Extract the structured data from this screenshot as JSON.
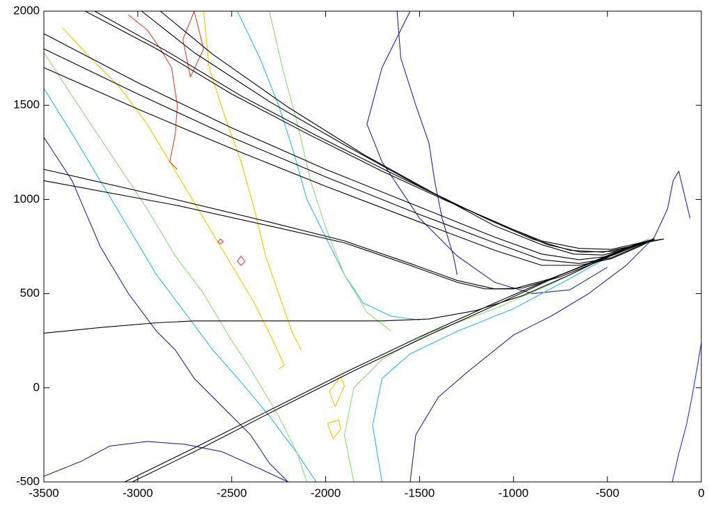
{
  "chart_data": {
    "type": "line",
    "xlim": [
      -3500,
      0
    ],
    "ylim": [
      -500,
      2000
    ],
    "xticks": [
      -3500,
      -3000,
      -2500,
      -2000,
      -1500,
      -1000,
      -500,
      0
    ],
    "yticks": [
      -500,
      0,
      500,
      1000,
      1500,
      2000
    ],
    "series": [
      {
        "color": "#1c2a8c",
        "x": [
          -3500,
          -3350,
          -3200,
          -3050,
          -2900,
          -2800,
          -2700,
          -2550,
          -2400,
          -2300,
          -2200
        ],
        "values": [
          1330,
          1100,
          750,
          500,
          300,
          200,
          50,
          -100,
          -250,
          -400,
          -500
        ]
      },
      {
        "color": "#1c2a8c",
        "x": [
          -1550,
          -1520,
          -1400,
          -1250,
          -1000,
          -800,
          -600,
          -400,
          -250,
          -180,
          -150,
          -120,
          -60
        ],
        "values": [
          -500,
          -250,
          -50,
          80,
          280,
          380,
          500,
          650,
          800,
          950,
          1100,
          1150,
          900
        ]
      },
      {
        "color": "#1c2a8c",
        "x": [
          -1620,
          -1600,
          -1520,
          -1450,
          -1420,
          -1380,
          -1320,
          -1300
        ],
        "values": [
          2000,
          1750,
          1500,
          1300,
          1100,
          900,
          700,
          600
        ]
      },
      {
        "color": "#1c2a8c",
        "x": [
          -1550,
          -1700,
          -1780,
          -1700,
          -1500,
          -1300,
          -1100,
          -900,
          -700,
          -500
        ],
        "values": [
          2000,
          1700,
          1400,
          1200,
          900,
          700,
          560,
          500,
          520,
          640
        ]
      },
      {
        "color": "#1c2a8c",
        "x": [
          -3500,
          -3300,
          -3150,
          -2950,
          -2750,
          -2550,
          -2350,
          -2200
        ],
        "values": [
          -470,
          -390,
          -310,
          -285,
          -300,
          -340,
          -430,
          -500
        ]
      },
      {
        "color": "#1f35d6",
        "x": [
          -155,
          -120,
          -80,
          -50,
          -20,
          0
        ],
        "values": [
          -500,
          -350,
          -200,
          -50,
          120,
          240
        ]
      },
      {
        "color": "#33b8e0",
        "x": [
          -3500,
          -3350,
          -3200,
          -3050,
          -2900,
          -2750,
          -2600,
          -2450,
          -2300,
          -2150,
          -2050
        ],
        "values": [
          1590,
          1350,
          1100,
          850,
          600,
          400,
          200,
          30,
          -150,
          -350,
          -500
        ]
      },
      {
        "color": "#33b8e0",
        "x": [
          -1700,
          -1750,
          -1700,
          -1550,
          -1300,
          -1000,
          -700,
          -450,
          -280
        ],
        "values": [
          -500,
          -200,
          50,
          180,
          300,
          420,
          580,
          720,
          790
        ]
      },
      {
        "color": "#33b8e0",
        "x": [
          -2470,
          -2350,
          -2250,
          -2170,
          -2100,
          -2000,
          -1900,
          -1800,
          -1650,
          -1500
        ],
        "values": [
          2000,
          1750,
          1500,
          1250,
          1000,
          800,
          600,
          450,
          380,
          360
        ]
      },
      {
        "color": "#8cdc78",
        "x": [
          -3500,
          -3350,
          -3150,
          -2950,
          -2800,
          -2650,
          -2500,
          -2400,
          -2250,
          -2150,
          -2100
        ],
        "values": [
          1780,
          1550,
          1250,
          950,
          700,
          500,
          250,
          100,
          -150,
          -350,
          -500
        ]
      },
      {
        "color": "#8cdc78",
        "x": [
          -1850,
          -1900,
          -1850,
          -1700,
          -1450,
          -1100,
          -800,
          -500,
          -300
        ],
        "values": [
          -500,
          -250,
          0,
          150,
          290,
          420,
          550,
          700,
          780
        ]
      },
      {
        "color": "#8cdc78",
        "x": [
          -2300,
          -2230,
          -2150,
          -2080,
          -2000,
          -1900,
          -1780,
          -1650
        ],
        "values": [
          2000,
          1700,
          1400,
          1100,
          850,
          600,
          400,
          300
        ]
      },
      {
        "color": "#f0c800",
        "x": [
          -3400,
          -3250,
          -3100,
          -2950,
          -2800,
          -2650,
          -2500,
          -2380,
          -2280,
          -2220,
          -2250
        ],
        "values": [
          1910,
          1750,
          1600,
          1400,
          1150,
          900,
          650,
          450,
          250,
          120,
          100
        ]
      },
      {
        "color": "#f0c800",
        "x": [
          -2650,
          -2620,
          -2540,
          -2450,
          -2380,
          -2320,
          -2250,
          -2180,
          -2130
        ],
        "values": [
          2000,
          1700,
          1450,
          1200,
          950,
          700,
          500,
          300,
          200
        ]
      },
      {
        "color": "#f0c800",
        "x": [
          -1950,
          -1900,
          -1920,
          -1980,
          -1950
        ],
        "values": [
          -100,
          10,
          60,
          -20,
          -100
        ]
      },
      {
        "color": "#f0c800",
        "x": [
          -1960,
          -1920,
          -1930,
          -1990,
          -1960
        ],
        "values": [
          -270,
          -220,
          -170,
          -190,
          -270
        ]
      },
      {
        "color": "#d24a2e",
        "x": [
          -3050,
          -2950,
          -2880,
          -2820,
          -2790,
          -2800,
          -2830,
          -2790
        ],
        "values": [
          1980,
          1900,
          1800,
          1700,
          1500,
          1350,
          1200,
          1160
        ]
      },
      {
        "color": "#d24a2e",
        "x": [
          -2700,
          -2650,
          -2720,
          -2760,
          -2700
        ],
        "values": [
          2000,
          1800,
          1650,
          1850,
          2000
        ]
      },
      {
        "color": "#d24a2e",
        "x": [
          -2560,
          -2545,
          -2560,
          -2575,
          -2560
        ],
        "values": [
          790,
          775,
          765,
          775,
          790
        ]
      },
      {
        "color": "#d24a2e",
        "x": [
          -2450,
          -2430,
          -2450,
          -2470,
          -2450
        ],
        "values": [
          700,
          670,
          650,
          670,
          700
        ]
      },
      {
        "color": "#000000",
        "x": [
          -3280,
          -2900,
          -2500,
          -2100,
          -1700,
          -1350,
          -1050,
          -850,
          -650,
          -480,
          -300,
          -200
        ],
        "values": [
          2000,
          1800,
          1560,
          1350,
          1150,
          990,
          860,
          780,
          740,
          735,
          775,
          790
        ]
      },
      {
        "color": "#000000",
        "x": [
          -3230,
          -2850,
          -2450,
          -2050,
          -1650,
          -1300,
          -1000,
          -820,
          -640,
          -470,
          -300,
          -200
        ],
        "values": [
          2000,
          1790,
          1550,
          1340,
          1140,
          970,
          840,
          760,
          720,
          725,
          770,
          790
        ]
      },
      {
        "color": "#000000",
        "x": [
          -2980,
          -2700,
          -2300,
          -1900,
          -1500,
          -1150,
          -900,
          -700,
          -520,
          -380,
          -250
        ],
        "values": [
          2000,
          1780,
          1520,
          1290,
          1070,
          900,
          790,
          730,
          720,
          750,
          790
        ]
      },
      {
        "color": "#000000",
        "x": [
          -2880,
          -2600,
          -2200,
          -1800,
          -1400,
          -1100,
          -850,
          -680,
          -520,
          -380,
          -250
        ],
        "values": [
          2000,
          1770,
          1490,
          1240,
          1020,
          860,
          760,
          710,
          705,
          745,
          790
        ]
      },
      {
        "color": "#000000",
        "x": [
          -3500,
          -3000,
          -2500,
          -2000,
          -1500,
          -1100,
          -850,
          -650,
          -480,
          -330,
          -250
        ],
        "values": [
          1880,
          1620,
          1380,
          1160,
          960,
          800,
          710,
          680,
          700,
          760,
          790
        ]
      },
      {
        "color": "#000000",
        "x": [
          -3500,
          -3000,
          -2500,
          -2000,
          -1500,
          -1100,
          -850,
          -650,
          -480,
          -330,
          -250
        ],
        "values": [
          1800,
          1560,
          1330,
          1120,
          920,
          770,
          680,
          660,
          690,
          755,
          790
        ]
      },
      {
        "color": "#000000",
        "x": [
          -3500,
          -3000,
          -2500,
          -2000,
          -1500,
          -1100,
          -850,
          -650,
          -480,
          -330,
          -250
        ],
        "values": [
          1700,
          1480,
          1270,
          1070,
          880,
          730,
          650,
          650,
          685,
          750,
          790
        ]
      },
      {
        "color": "#000000",
        "x": [
          -3500,
          -2800,
          -2300,
          -1900,
          -1550,
          -1300,
          -1100,
          -950,
          -750,
          -550,
          -350,
          -250
        ],
        "values": [
          1160,
          1000,
          880,
          780,
          660,
          570,
          525,
          530,
          590,
          670,
          760,
          790
        ]
      },
      {
        "color": "#000000",
        "x": [
          -3500,
          -2800,
          -2300,
          -1900,
          -1550,
          -1300,
          -1150,
          -1000,
          -800,
          -580,
          -360,
          -250
        ],
        "values": [
          1100,
          970,
          860,
          770,
          650,
          560,
          525,
          525,
          580,
          665,
          755,
          790
        ]
      },
      {
        "color": "#000000",
        "x": [
          -3500,
          -3200,
          -2900,
          -2700,
          -2200,
          -1700,
          -1450,
          -1200,
          -950,
          -700,
          -450,
          -250
        ],
        "values": [
          290,
          320,
          345,
          355,
          355,
          355,
          365,
          410,
          490,
          600,
          720,
          790
        ]
      },
      {
        "color": "#000000",
        "x": [
          -3070,
          -2700,
          -2300,
          -1900,
          -1500,
          -1100,
          -800,
          -550,
          -350,
          -250
        ],
        "values": [
          -500,
          -320,
          -120,
          80,
          270,
          450,
          580,
          680,
          760,
          790
        ]
      },
      {
        "color": "#000000",
        "x": [
          -3030,
          -2650,
          -2250,
          -1850,
          -1450,
          -1050,
          -770,
          -530,
          -340,
          -250
        ],
        "values": [
          -500,
          -315,
          -110,
          90,
          280,
          460,
          590,
          690,
          765,
          790
        ]
      }
    ]
  }
}
